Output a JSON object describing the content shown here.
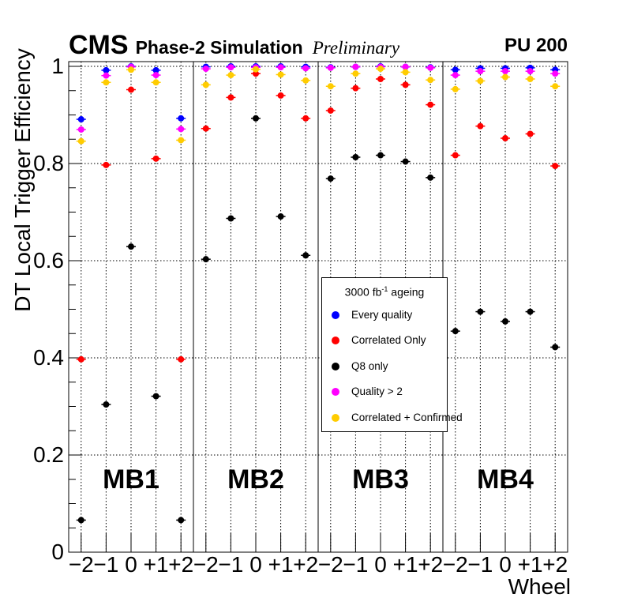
{
  "header": {
    "experiment": "CMS",
    "subtitle": "Phase-2 Simulation",
    "status": "Preliminary",
    "pileup": "PU 200"
  },
  "axes": {
    "y_title": "DT Local Trigger Efficiency",
    "x_title": "Wheel",
    "y_tick_labels": [
      "0",
      "0.2",
      "0.4",
      "0.6",
      "0.8",
      "1"
    ],
    "y_tick_values": [
      0,
      0.2,
      0.4,
      0.6,
      0.8,
      1
    ],
    "wheel_labels": [
      "−2",
      "−1",
      "0",
      "+1",
      "+2"
    ]
  },
  "legend": {
    "title_prefix": "3000 fb",
    "title_sup": "-1",
    "title_suffix": " ageing",
    "entries": [
      {
        "label": "Every quality",
        "color": "#0000ff"
      },
      {
        "label": "Correlated Only",
        "color": "#ff0000"
      },
      {
        "label": "Q8 only",
        "color": "#000000"
      },
      {
        "label": "Quality > 2",
        "color": "#ff00ff"
      },
      {
        "label": "Correlated + Confirmed",
        "color": "#ffcc00"
      }
    ]
  },
  "chart_data": {
    "type": "scatter",
    "title": "CMS Phase-2 Simulation Preliminary — DT Local Trigger Efficiency, PU 200, 3000 fb-1 ageing",
    "xlabel": "Wheel",
    "ylabel": "DT Local Trigger Efficiency",
    "ylim": [
      0,
      1.013
    ],
    "grid": "dotted",
    "legend_position": "center",
    "panels": [
      "MB1",
      "MB2",
      "MB3",
      "MB4"
    ],
    "categories": [
      "-2",
      "-1",
      "0",
      "+1",
      "+2"
    ],
    "series": [
      {
        "name": "Every quality",
        "color": "#0000ff",
        "values": {
          "MB1": [
            0.891,
            0.992,
            1.0,
            0.992,
            0.893
          ],
          "MB2": [
            0.999,
            1.0,
            1.0,
            1.0,
            0.999
          ],
          "MB3": [
            0.998,
            0.999,
            1.0,
            0.999,
            0.998
          ],
          "MB4": [
            0.993,
            0.996,
            0.996,
            0.997,
            0.993
          ]
        }
      },
      {
        "name": "Correlated Only",
        "color": "#ff0000",
        "values": {
          "MB1": [
            0.397,
            0.797,
            0.952,
            0.81,
            0.397
          ],
          "MB2": [
            0.872,
            0.936,
            0.985,
            0.94,
            0.893
          ],
          "MB3": [
            0.909,
            0.955,
            0.974,
            0.962,
            0.921
          ],
          "MB4": [
            0.817,
            0.877,
            0.852,
            0.861,
            0.795
          ]
        }
      },
      {
        "name": "Q8 only",
        "color": "#000000",
        "values": {
          "MB1": [
            0.066,
            0.304,
            0.629,
            0.321,
            0.066
          ],
          "MB2": [
            0.603,
            0.687,
            0.893,
            0.691,
            0.611
          ],
          "MB3": [
            0.769,
            0.813,
            0.817,
            0.804,
            0.771
          ],
          "MB4": [
            0.455,
            0.495,
            0.475,
            0.495,
            0.422
          ]
        }
      },
      {
        "name": "Quality > 2",
        "color": "#ff00ff",
        "values": {
          "MB1": [
            0.87,
            0.981,
            0.999,
            0.982,
            0.871
          ],
          "MB2": [
            0.995,
            0.998,
            0.998,
            0.998,
            0.996
          ],
          "MB3": [
            0.997,
            0.999,
            0.999,
            0.999,
            0.997
          ],
          "MB4": [
            0.982,
            0.99,
            0.99,
            0.99,
            0.985
          ]
        }
      },
      {
        "name": "Correlated + Confirmed",
        "color": "#ffcc00",
        "values": {
          "MB1": [
            0.846,
            0.967,
            0.993,
            0.967,
            0.848
          ],
          "MB2": [
            0.962,
            0.982,
            0.994,
            0.983,
            0.971
          ],
          "MB3": [
            0.959,
            0.985,
            0.995,
            0.988,
            0.972
          ],
          "MB4": [
            0.953,
            0.97,
            0.978,
            0.974,
            0.959
          ]
        }
      }
    ]
  }
}
